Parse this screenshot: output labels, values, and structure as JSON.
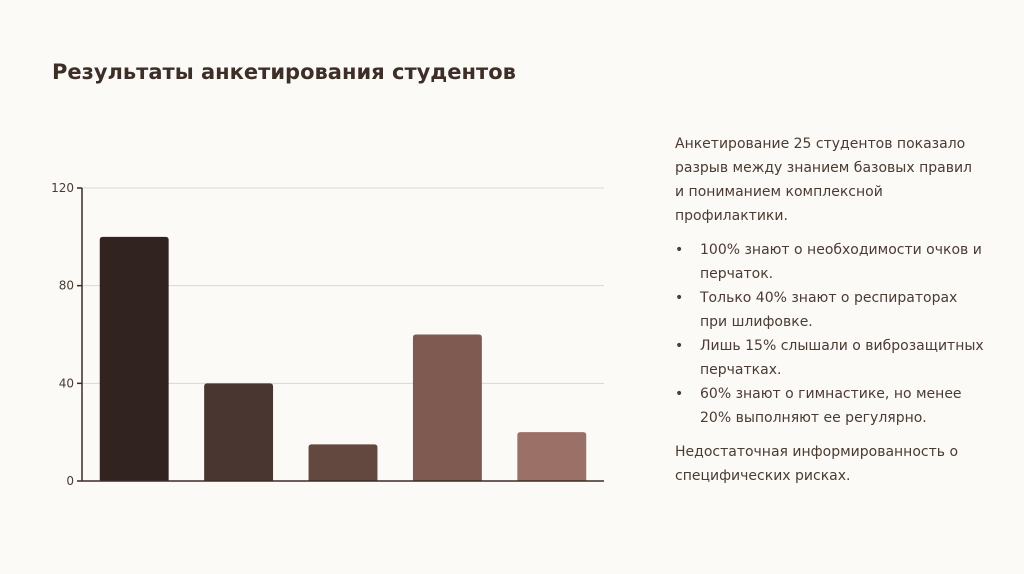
{
  "slide": {
    "title": "Результаты анкетирования студентов"
  },
  "chart_data": {
    "type": "bar",
    "categories": [
      "",
      "",
      "",
      "",
      ""
    ],
    "values": [
      100,
      40,
      15,
      60,
      20
    ],
    "colors": [
      "#302320",
      "#4a3631",
      "#634840",
      "#7e5a50",
      "#9b7066"
    ],
    "ylim": [
      0,
      120
    ],
    "yticks": [
      "0",
      "40",
      "80",
      "120"
    ],
    "grid": true,
    "legend": "none",
    "title": "",
    "xlabel": "",
    "ylabel": ""
  },
  "text": {
    "intro": "Анкетирование 25 студентов показало разрыв между знанием базовых правил и пониманием комплексной профилактики.",
    "bullet_symbol": "•",
    "bullets": [
      "100% знают о необходимости очков и перчаток.",
      "Только 40% знают о респираторах при шлифовке.",
      "Лишь 15% слышали о виброзащитных перчатках.",
      "60% знают о гимнастике, но менее 20% выполняют ее регулярно."
    ],
    "conclusion": "Недостаточная информированность о специфических рисках."
  }
}
